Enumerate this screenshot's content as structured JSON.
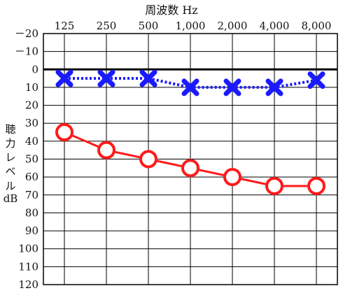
{
  "chart_data": {
    "type": "line",
    "title": "周波数 Hz",
    "xlabel": "周波数 Hz",
    "ylabel": "聴力レベル dB",
    "categories": [
      "125",
      "250",
      "500",
      "1,000",
      "2,000",
      "4,000",
      "8,000"
    ],
    "y_ticks": [
      "－20",
      "－10",
      "0",
      "10",
      "20",
      "30",
      "40",
      "50",
      "60",
      "70",
      "80",
      "90",
      "100",
      "110",
      "120"
    ],
    "ylim": [
      -20,
      120
    ],
    "y_inverted": true,
    "grid": true,
    "ylabel_lines": [
      "聴",
      "力",
      "レ",
      "ベ",
      "ル",
      "dB"
    ],
    "series": [
      {
        "marker": "x",
        "line_style": "dotted",
        "color": "#1a1aff",
        "values": [
          5,
          5,
          5,
          10,
          10,
          10,
          6
        ]
      },
      {
        "marker": "circle",
        "line_style": "solid",
        "color": "#ff1a1a",
        "values": [
          35,
          45,
          50,
          55,
          60,
          65,
          65
        ]
      }
    ]
  }
}
